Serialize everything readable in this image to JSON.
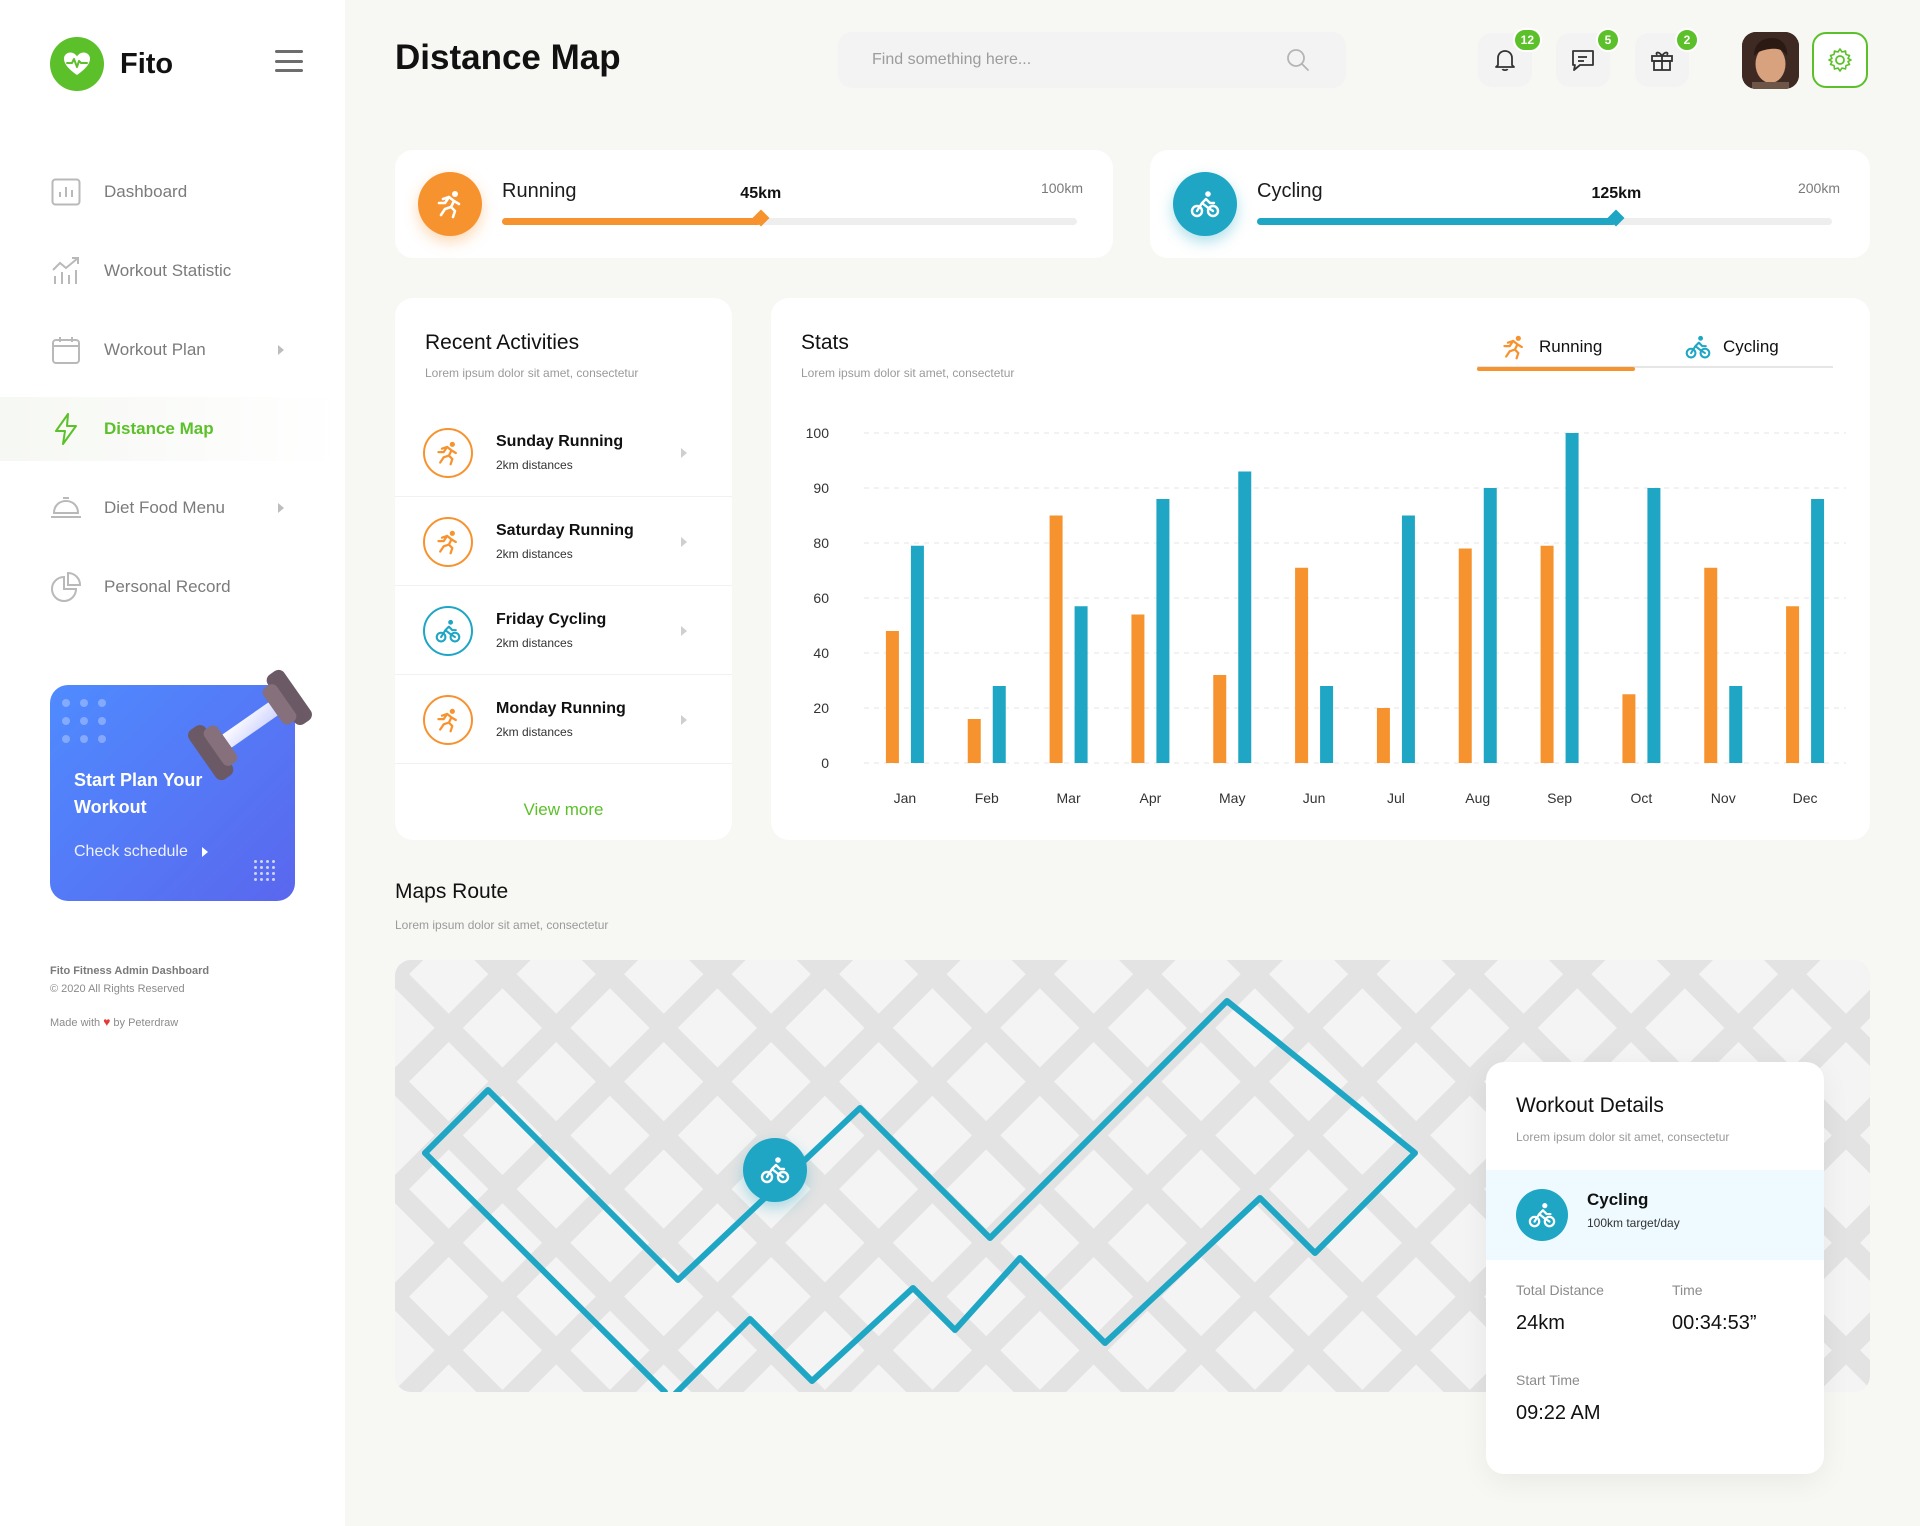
{
  "brand": {
    "name": "Fito"
  },
  "sidebar": {
    "items": [
      {
        "label": "Dashboard",
        "icon": "bar-chart-icon",
        "has_chevron": false,
        "active": false
      },
      {
        "label": "Workout Statistic",
        "icon": "trend-icon",
        "has_chevron": false,
        "active": false
      },
      {
        "label": "Workout Plan",
        "icon": "calendar-icon",
        "has_chevron": true,
        "active": false
      },
      {
        "label": "Distance Map",
        "icon": "lightning-icon",
        "has_chevron": false,
        "active": true
      },
      {
        "label": "Diet Food Menu",
        "icon": "food-cloche-icon",
        "has_chevron": true,
        "active": false
      },
      {
        "label": "Personal Record",
        "icon": "pie-chart-icon",
        "has_chevron": false,
        "active": false
      }
    ],
    "promo": {
      "title": "Start Plan Your Workout",
      "link": "Check schedule"
    },
    "footer": {
      "title": "Fito Fitness Admin Dashboard",
      "copyright": "© 2020 All Rights Reserved",
      "made_prefix": "Made with",
      "made_suffix": "by Peterdraw"
    }
  },
  "header": {
    "title": "Distance Map",
    "search_placeholder": "Find something here...",
    "notifications": {
      "count": "12"
    },
    "messages": {
      "count": "5"
    },
    "gifts": {
      "count": "2"
    }
  },
  "progress": {
    "running": {
      "label": "Running",
      "value": "45km",
      "max": "100km",
      "fraction": 0.45,
      "color": "#f7932e"
    },
    "cycling": {
      "label": "Cycling",
      "value": "125km",
      "max": "200km",
      "fraction": 0.625,
      "color": "#1ea6c4"
    }
  },
  "recent": {
    "title": "Recent Activities",
    "subtitle": "Lorem ipsum dolor sit amet, consectetur",
    "items": [
      {
        "title": "Sunday Running",
        "sub": "2km distances",
        "type": "running"
      },
      {
        "title": "Saturday Running",
        "sub": "2km distances",
        "type": "running"
      },
      {
        "title": "Friday Cycling",
        "sub": "2km distances",
        "type": "cycling"
      },
      {
        "title": "Monday Running",
        "sub": "2km distances",
        "type": "running"
      }
    ],
    "view_more": "View more"
  },
  "stats": {
    "title": "Stats",
    "subtitle": "Lorem ipsum dolor sit amet, consectetur",
    "tabs": [
      {
        "label": "Running",
        "active": true
      },
      {
        "label": "Cycling",
        "active": false
      }
    ]
  },
  "chart_data": {
    "type": "bar",
    "categories": [
      "Jan",
      "Feb",
      "Mar",
      "Apr",
      "May",
      "Jun",
      "Jul",
      "Aug",
      "Sep",
      "Oct",
      "Nov",
      "Dec"
    ],
    "y_ticks": [
      "0",
      "20",
      "40",
      "60",
      "80",
      "90",
      "100"
    ],
    "series": [
      {
        "values": [
          48,
          16,
          85,
          54,
          32,
          71,
          20,
          78,
          79,
          25,
          71,
          57
        ],
        "color": "#f7932e"
      },
      {
        "values": [
          79,
          28,
          57,
          88,
          93,
          28,
          85,
          90,
          100,
          90,
          28,
          88
        ],
        "color": "#1ea6c4"
      }
    ],
    "ylim": [
      0,
      100
    ],
    "grid": true
  },
  "maps": {
    "title": "Maps Route",
    "subtitle": "Lorem ipsum dolor sit amet, consectetur"
  },
  "workout": {
    "title": "Workout Details",
    "subtitle": "Lorem ipsum dolor sit amet, consectetur",
    "activity": "Cycling",
    "target": "100km target/day",
    "total_distance_label": "Total Distance",
    "total_distance": "24km",
    "time_label": "Time",
    "time": "00:34:53”",
    "start_label": "Start Time",
    "start": "09:22 AM"
  }
}
